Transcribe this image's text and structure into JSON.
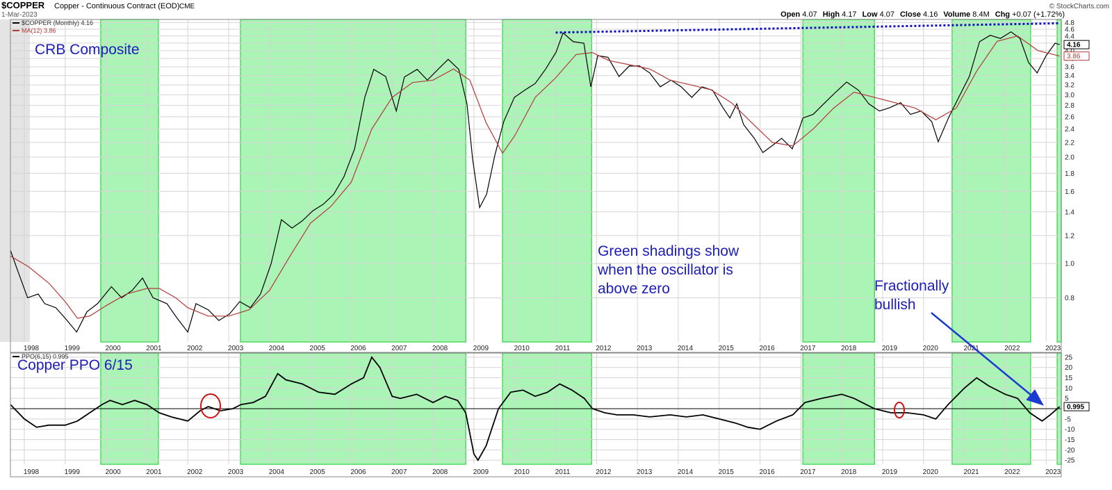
{
  "header": {
    "symbol": "$COPPER",
    "name": "Copper - Continuous Contract (EOD)",
    "exchange": "CME",
    "date": "1-Mar-2023",
    "credit": "© StockCharts.com",
    "quote": [
      {
        "label": "Open",
        "value": "4.07"
      },
      {
        "label": "High",
        "value": "4.17"
      },
      {
        "label": "Low",
        "value": "4.07"
      },
      {
        "label": "Close",
        "value": "4.16"
      },
      {
        "label": "Volume",
        "value": "8.4M"
      },
      {
        "label": "Chg",
        "value": "+0.07 (+1.72%)"
      }
    ]
  },
  "chart_data": [
    {
      "type": "line",
      "title": "CRB Composite",
      "log_y": true,
      "grid": true,
      "xlim": [
        1997.66,
        2023.37
      ],
      "ylim": [
        0.6,
        4.9
      ],
      "xticks": [
        1998,
        1999,
        2000,
        2001,
        2002,
        2003,
        2004,
        2005,
        2006,
        2007,
        2008,
        2009,
        2010,
        2011,
        2012,
        2013,
        2014,
        2015,
        2016,
        2017,
        2018,
        2019,
        2020,
        2021,
        2022,
        2023
      ],
      "yticks": [
        0.8,
        {
          "value": 1,
          "label": "1.0"
        },
        1.2,
        1.4,
        1.6,
        1.8,
        {
          "value": 2,
          "label": "2.0"
        },
        2.2,
        2.4,
        2.6,
        2.8,
        {
          "value": 3,
          "label": "3.0"
        },
        3.2,
        3.4,
        3.6,
        3.8,
        {
          "value": 4,
          "label": "4.0"
        },
        4.2,
        4.4,
        4.6,
        4.8
      ],
      "shade_color": "#aaf5b6",
      "shaded_periods": [
        [
          1999.87,
          2001.28
        ],
        [
          2003.29,
          2008.8
        ],
        [
          2009.7,
          2011.88
        ],
        [
          2017.05,
          2018.8
        ],
        [
          2020.7,
          2022.62
        ],
        [
          2023.27,
          2023.37
        ]
      ],
      "series": [
        {
          "name": "$COPPER (Monthly) 4.16",
          "color": "#000000",
          "last_value_label": "4.16",
          "x": [
            1997.66,
            1997.83,
            1998.08,
            1998.34,
            1998.5,
            1998.77,
            1999.0,
            1999.28,
            1999.53,
            1999.79,
            2000.13,
            2000.38,
            2000.64,
            2000.89,
            2001.15,
            2001.49,
            2001.74,
            2002.0,
            2002.2,
            2002.5,
            2002.76,
            2003.02,
            2003.27,
            2003.53,
            2003.78,
            2004.04,
            2004.29,
            2004.55,
            2004.8,
            2005.06,
            2005.31,
            2005.57,
            2005.82,
            2006.08,
            2006.33,
            2006.55,
            2006.84,
            2007.1,
            2007.3,
            2007.61,
            2007.86,
            2008.12,
            2008.37,
            2008.63,
            2008.83,
            2008.97,
            2009.14,
            2009.31,
            2009.51,
            2009.73,
            2009.99,
            2010.24,
            2010.5,
            2010.75,
            2011.01,
            2011.18,
            2011.43,
            2011.69,
            2011.86,
            2012.03,
            2012.28,
            2012.55,
            2012.8,
            2013.05,
            2013.3,
            2013.56,
            2013.82,
            2014.07,
            2014.33,
            2014.58,
            2014.84,
            2015.09,
            2015.26,
            2015.43,
            2015.6,
            2015.86,
            2016.07,
            2016.31,
            2016.53,
            2016.79,
            2017.05,
            2017.3,
            2017.56,
            2017.81,
            2018.12,
            2018.41,
            2018.66,
            2018.92,
            2019.18,
            2019.44,
            2019.68,
            2019.94,
            2020.2,
            2020.36,
            2020.61,
            2020.86,
            2021.12,
            2021.37,
            2021.63,
            2021.88,
            2022.14,
            2022.36,
            2022.57,
            2022.78,
            2023.0,
            2023.22,
            2023.33
          ],
          "values": [
            1.09,
            0.96,
            0.8,
            0.82,
            0.77,
            0.75,
            0.7,
            0.64,
            0.73,
            0.77,
            0.86,
            0.8,
            0.84,
            0.91,
            0.8,
            0.77,
            0.7,
            0.64,
            0.77,
            0.74,
            0.69,
            0.72,
            0.78,
            0.75,
            0.82,
            1.0,
            1.33,
            1.26,
            1.32,
            1.41,
            1.47,
            1.57,
            1.76,
            2.11,
            2.95,
            3.54,
            3.38,
            2.7,
            3.37,
            3.54,
            3.3,
            3.54,
            3.78,
            3.54,
            2.83,
            1.97,
            1.44,
            1.57,
            2.02,
            2.52,
            2.95,
            3.09,
            3.23,
            3.54,
            3.96,
            4.49,
            4.24,
            4.2,
            3.16,
            3.87,
            3.83,
            3.38,
            3.62,
            3.62,
            3.46,
            3.16,
            3.3,
            3.16,
            2.95,
            3.16,
            3.09,
            2.76,
            2.58,
            2.83,
            2.47,
            2.26,
            2.06,
            2.16,
            2.26,
            2.11,
            2.58,
            2.64,
            2.83,
            3.02,
            3.26,
            3.09,
            2.83,
            2.7,
            2.76,
            2.85,
            2.64,
            2.7,
            2.52,
            2.21,
            2.58,
            2.95,
            3.38,
            4.24,
            4.42,
            4.33,
            4.52,
            4.33,
            3.7,
            3.46,
            3.87,
            4.2,
            4.16
          ]
        },
        {
          "name": "MA(12) 3.86",
          "color": "#b23a3a",
          "last_value_label": "3.86",
          "x": [
            1997.66,
            1998.1,
            1998.6,
            1999.0,
            1999.3,
            1999.6,
            2000.0,
            2000.5,
            2001.0,
            2001.3,
            2001.7,
            2002.0,
            2002.5,
            2003.0,
            2003.5,
            2004.0,
            2004.5,
            2005.0,
            2005.5,
            2006.0,
            2006.5,
            2007.0,
            2007.5,
            2008.0,
            2008.5,
            2008.9,
            2009.3,
            2009.7,
            2010.0,
            2010.5,
            2011.0,
            2011.5,
            2011.9,
            2012.3,
            2012.8,
            2013.3,
            2013.8,
            2014.3,
            2014.8,
            2015.3,
            2015.8,
            2016.3,
            2016.8,
            2017.3,
            2017.8,
            2018.3,
            2018.8,
            2019.3,
            2019.8,
            2020.3,
            2020.8,
            2021.3,
            2021.8,
            2022.3,
            2022.8,
            2023.33
          ],
          "values": [
            1.05,
            0.98,
            0.88,
            0.78,
            0.7,
            0.71,
            0.76,
            0.82,
            0.85,
            0.85,
            0.8,
            0.75,
            0.71,
            0.71,
            0.74,
            0.84,
            1.05,
            1.3,
            1.45,
            1.7,
            2.4,
            2.95,
            3.25,
            3.3,
            3.55,
            3.3,
            2.5,
            2.05,
            2.3,
            2.95,
            3.35,
            3.9,
            3.95,
            3.75,
            3.65,
            3.55,
            3.3,
            3.2,
            3.1,
            2.85,
            2.5,
            2.2,
            2.15,
            2.4,
            2.75,
            3.05,
            2.95,
            2.85,
            2.75,
            2.55,
            2.75,
            3.5,
            4.25,
            4.4,
            4.0,
            3.86
          ]
        }
      ],
      "trend_line": {
        "color": "#1010c0",
        "x": [
          2011.0,
          2023.33
        ],
        "values": [
          4.5,
          4.78
        ]
      },
      "annotations": [
        {
          "lines": [
            "Green shadings show",
            "when the oscillator is",
            "above zero"
          ]
        },
        {
          "lines": [
            "Fractionally",
            "bullish"
          ]
        }
      ]
    },
    {
      "type": "line",
      "title": "Copper PPO 6/15",
      "grid": true,
      "xlim": [
        1997.66,
        2023.37
      ],
      "ylim": [
        -27,
        27
      ],
      "xticks": [
        1998,
        1999,
        2000,
        2001,
        2002,
        2003,
        2004,
        2005,
        2006,
        2007,
        2008,
        2009,
        2010,
        2011,
        2012,
        2013,
        2014,
        2015,
        2016,
        2017,
        2018,
        2019,
        2020,
        2021,
        2022,
        2023
      ],
      "yticks": [
        -25,
        -20,
        -15,
        -10,
        -5,
        5,
        10,
        15,
        20,
        25
      ],
      "series": [
        {
          "name": "PPO(6,15) 0.995",
          "color": "#000000",
          "last_value_label": "0.995",
          "x": [
            1997.66,
            1998.0,
            1998.3,
            1998.6,
            1999.0,
            1999.3,
            1999.6,
            1999.9,
            2000.1,
            2000.4,
            2000.7,
            2001.0,
            2001.3,
            2001.6,
            2002.0,
            2002.3,
            2002.5,
            2002.8,
            2003.1,
            2003.3,
            2003.6,
            2003.9,
            2004.2,
            2004.4,
            2004.8,
            2005.2,
            2005.6,
            2006.0,
            2006.3,
            2006.5,
            2006.7,
            2007.0,
            2007.2,
            2007.6,
            2008.0,
            2008.3,
            2008.6,
            2008.8,
            2009.0,
            2009.1,
            2009.3,
            2009.6,
            2009.9,
            2010.2,
            2010.5,
            2010.8,
            2011.1,
            2011.4,
            2011.7,
            2011.9,
            2012.2,
            2012.5,
            2012.9,
            2013.3,
            2013.8,
            2014.2,
            2014.6,
            2015.0,
            2015.4,
            2015.7,
            2016.0,
            2016.4,
            2016.8,
            2017.1,
            2017.5,
            2018.0,
            2018.3,
            2018.8,
            2019.2,
            2019.6,
            2020.0,
            2020.3,
            2020.6,
            2021.0,
            2021.3,
            2021.6,
            2022.0,
            2022.3,
            2022.6,
            2022.9,
            2023.1,
            2023.33
          ],
          "values": [
            2,
            -5,
            -9,
            -8,
            -8,
            -6,
            -2,
            2,
            4,
            2,
            4,
            2,
            -2,
            -4,
            -6,
            -1,
            1,
            -1,
            0,
            2,
            3,
            6,
            17,
            14,
            12,
            8,
            7,
            12,
            15,
            25,
            20,
            6,
            5,
            7,
            3,
            6,
            4,
            -2,
            -22,
            -25,
            -18,
            0,
            8,
            9,
            6,
            8,
            12,
            9,
            5,
            0,
            -2,
            -3,
            -3,
            -4,
            -3,
            -4,
            -3,
            -5,
            -7,
            -9,
            -10,
            -6,
            -3,
            3,
            5,
            7,
            5,
            0,
            -2,
            -2,
            -3,
            -5,
            2,
            10,
            15,
            11,
            7,
            5,
            -2,
            -6,
            -3,
            0.995
          ]
        }
      ]
    }
  ]
}
